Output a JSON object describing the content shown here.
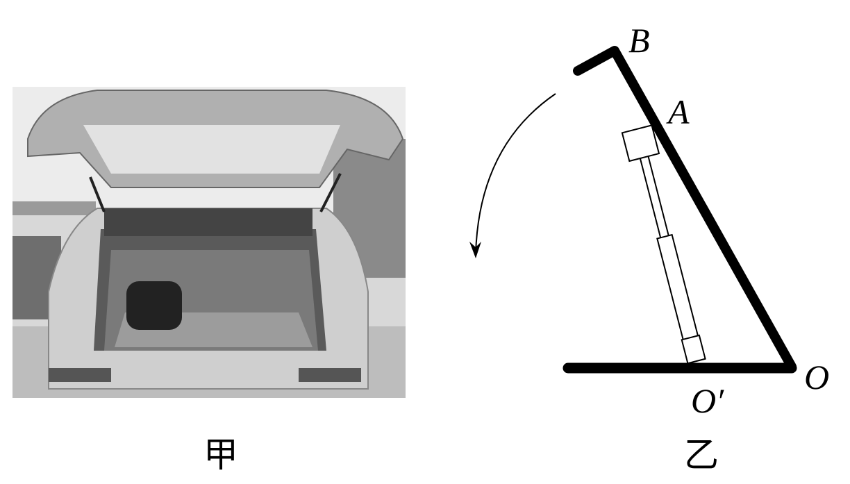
{
  "photo": {
    "caption": "甲"
  },
  "diagram": {
    "caption": "乙",
    "points": [
      "B",
      "A",
      "O",
      "O′"
    ]
  }
}
